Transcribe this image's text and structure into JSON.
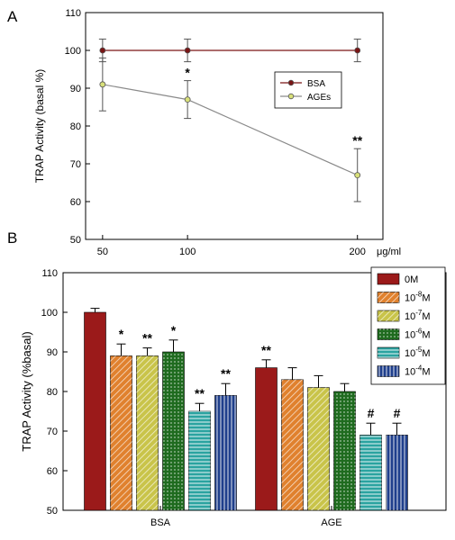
{
  "figure": {
    "panel_a_letter": "A",
    "panel_b_letter": "B"
  },
  "chart_data": [
    {
      "type": "line",
      "title": "",
      "xlabel": "",
      "x_unit": "μg/ml",
      "ylabel": "TRAP Activity (basal %)",
      "x": [
        50,
        100,
        200
      ],
      "x_tick_labels": [
        "50",
        "100",
        "200"
      ],
      "xlim": [
        40,
        215
      ],
      "ylim": [
        50,
        110
      ],
      "yticks": [
        50,
        60,
        70,
        80,
        90,
        100,
        110
      ],
      "legend_position": "upper-right",
      "series": [
        {
          "name": "BSA",
          "values": [
            100,
            100,
            100
          ],
          "errors": [
            3,
            3,
            3
          ],
          "color": "#7a1515",
          "marker_fill": "#7a1515",
          "significance": [
            "",
            "",
            ""
          ]
        },
        {
          "name": "AGEs",
          "values": [
            91,
            87,
            67
          ],
          "errors": [
            7,
            5,
            7
          ],
          "color": "#8a8a8a",
          "marker_fill": "#d8e07a",
          "significance": [
            "",
            "*",
            "**"
          ]
        }
      ]
    },
    {
      "type": "bar",
      "title": "",
      "xlabel": "",
      "ylabel": "TRAP Activity (%basal)",
      "categories": [
        "BSA",
        "AGE"
      ],
      "ylim": [
        50,
        110
      ],
      "yticks": [
        50,
        60,
        70,
        80,
        90,
        100,
        110
      ],
      "legend_position": "upper-right",
      "series": [
        {
          "name": "0M",
          "base": "0M",
          "exp": "",
          "suffix": "",
          "values": [
            100,
            86
          ],
          "errors": [
            1,
            2
          ],
          "color": "#9b1a1a",
          "pattern": "solid",
          "significance": [
            "",
            "**"
          ]
        },
        {
          "name": "10-8M",
          "base": "10",
          "exp": "-8",
          "suffix": "M",
          "values": [
            89,
            83
          ],
          "errors": [
            3,
            3
          ],
          "color": "#e0812e",
          "pattern": "hatch",
          "significance": [
            "*",
            ""
          ]
        },
        {
          "name": "10-7M",
          "base": "10",
          "exp": "-7",
          "suffix": "M",
          "values": [
            89,
            81
          ],
          "errors": [
            2,
            3
          ],
          "color": "#c9c44a",
          "pattern": "hatch",
          "significance": [
            "**",
            ""
          ]
        },
        {
          "name": "10-6M",
          "base": "10",
          "exp": "-6",
          "suffix": "M",
          "values": [
            90,
            80
          ],
          "errors": [
            3,
            2
          ],
          "color": "#1f6b1f",
          "pattern": "dots",
          "significance": [
            "*",
            ""
          ]
        },
        {
          "name": "10-5M",
          "base": "10",
          "exp": "-5",
          "suffix": "M",
          "values": [
            75,
            69
          ],
          "errors": [
            2,
            3
          ],
          "color": "#2aa3a0",
          "pattern": "hstripes",
          "significance": [
            "**",
            "#"
          ]
        },
        {
          "name": "10-4M",
          "base": "10",
          "exp": "-4",
          "suffix": "M",
          "values": [
            79,
            69
          ],
          "errors": [
            3,
            3
          ],
          "color": "#1f3f8c",
          "pattern": "vstripes",
          "significance": [
            "**",
            "#"
          ]
        }
      ]
    }
  ]
}
